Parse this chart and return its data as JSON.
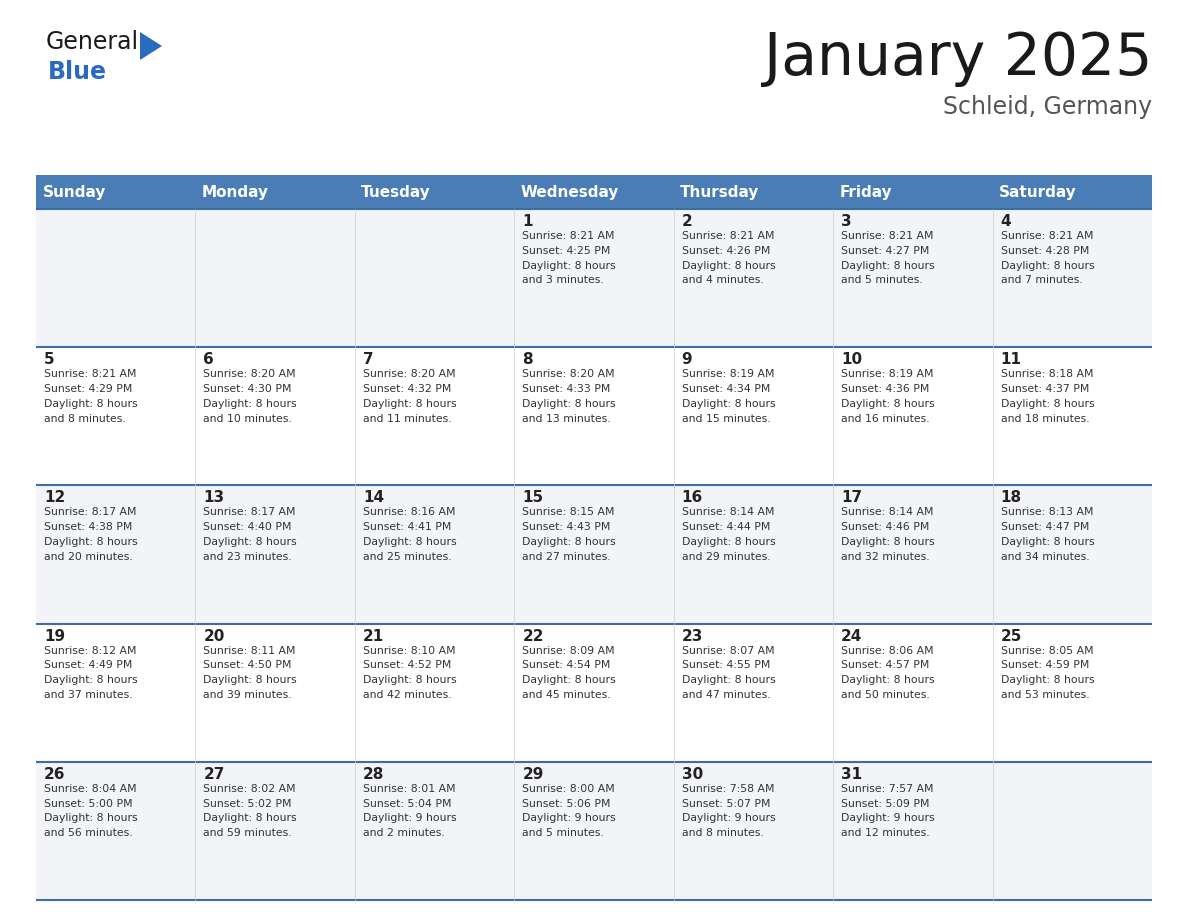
{
  "title": "January 2025",
  "subtitle": "Schleid, Germany",
  "days_of_week": [
    "Sunday",
    "Monday",
    "Tuesday",
    "Wednesday",
    "Thursday",
    "Friday",
    "Saturday"
  ],
  "header_bg": "#4a7cb5",
  "header_text": "#ffffff",
  "row_bg_light": "#f2f4f7",
  "row_bg_white": "#ffffff",
  "day_number_color": "#222222",
  "cell_text_color": "#333333",
  "border_color": "#3a6ea8",
  "title_color": "#1a1a1a",
  "subtitle_color": "#555555",
  "calendar": [
    [
      {
        "day": null,
        "text": ""
      },
      {
        "day": null,
        "text": ""
      },
      {
        "day": null,
        "text": ""
      },
      {
        "day": 1,
        "text": "Sunrise: 8:21 AM\nSunset: 4:25 PM\nDaylight: 8 hours\nand 3 minutes."
      },
      {
        "day": 2,
        "text": "Sunrise: 8:21 AM\nSunset: 4:26 PM\nDaylight: 8 hours\nand 4 minutes."
      },
      {
        "day": 3,
        "text": "Sunrise: 8:21 AM\nSunset: 4:27 PM\nDaylight: 8 hours\nand 5 minutes."
      },
      {
        "day": 4,
        "text": "Sunrise: 8:21 AM\nSunset: 4:28 PM\nDaylight: 8 hours\nand 7 minutes."
      }
    ],
    [
      {
        "day": 5,
        "text": "Sunrise: 8:21 AM\nSunset: 4:29 PM\nDaylight: 8 hours\nand 8 minutes."
      },
      {
        "day": 6,
        "text": "Sunrise: 8:20 AM\nSunset: 4:30 PM\nDaylight: 8 hours\nand 10 minutes."
      },
      {
        "day": 7,
        "text": "Sunrise: 8:20 AM\nSunset: 4:32 PM\nDaylight: 8 hours\nand 11 minutes."
      },
      {
        "day": 8,
        "text": "Sunrise: 8:20 AM\nSunset: 4:33 PM\nDaylight: 8 hours\nand 13 minutes."
      },
      {
        "day": 9,
        "text": "Sunrise: 8:19 AM\nSunset: 4:34 PM\nDaylight: 8 hours\nand 15 minutes."
      },
      {
        "day": 10,
        "text": "Sunrise: 8:19 AM\nSunset: 4:36 PM\nDaylight: 8 hours\nand 16 minutes."
      },
      {
        "day": 11,
        "text": "Sunrise: 8:18 AM\nSunset: 4:37 PM\nDaylight: 8 hours\nand 18 minutes."
      }
    ],
    [
      {
        "day": 12,
        "text": "Sunrise: 8:17 AM\nSunset: 4:38 PM\nDaylight: 8 hours\nand 20 minutes."
      },
      {
        "day": 13,
        "text": "Sunrise: 8:17 AM\nSunset: 4:40 PM\nDaylight: 8 hours\nand 23 minutes."
      },
      {
        "day": 14,
        "text": "Sunrise: 8:16 AM\nSunset: 4:41 PM\nDaylight: 8 hours\nand 25 minutes."
      },
      {
        "day": 15,
        "text": "Sunrise: 8:15 AM\nSunset: 4:43 PM\nDaylight: 8 hours\nand 27 minutes."
      },
      {
        "day": 16,
        "text": "Sunrise: 8:14 AM\nSunset: 4:44 PM\nDaylight: 8 hours\nand 29 minutes."
      },
      {
        "day": 17,
        "text": "Sunrise: 8:14 AM\nSunset: 4:46 PM\nDaylight: 8 hours\nand 32 minutes."
      },
      {
        "day": 18,
        "text": "Sunrise: 8:13 AM\nSunset: 4:47 PM\nDaylight: 8 hours\nand 34 minutes."
      }
    ],
    [
      {
        "day": 19,
        "text": "Sunrise: 8:12 AM\nSunset: 4:49 PM\nDaylight: 8 hours\nand 37 minutes."
      },
      {
        "day": 20,
        "text": "Sunrise: 8:11 AM\nSunset: 4:50 PM\nDaylight: 8 hours\nand 39 minutes."
      },
      {
        "day": 21,
        "text": "Sunrise: 8:10 AM\nSunset: 4:52 PM\nDaylight: 8 hours\nand 42 minutes."
      },
      {
        "day": 22,
        "text": "Sunrise: 8:09 AM\nSunset: 4:54 PM\nDaylight: 8 hours\nand 45 minutes."
      },
      {
        "day": 23,
        "text": "Sunrise: 8:07 AM\nSunset: 4:55 PM\nDaylight: 8 hours\nand 47 minutes."
      },
      {
        "day": 24,
        "text": "Sunrise: 8:06 AM\nSunset: 4:57 PM\nDaylight: 8 hours\nand 50 minutes."
      },
      {
        "day": 25,
        "text": "Sunrise: 8:05 AM\nSunset: 4:59 PM\nDaylight: 8 hours\nand 53 minutes."
      }
    ],
    [
      {
        "day": 26,
        "text": "Sunrise: 8:04 AM\nSunset: 5:00 PM\nDaylight: 8 hours\nand 56 minutes."
      },
      {
        "day": 27,
        "text": "Sunrise: 8:02 AM\nSunset: 5:02 PM\nDaylight: 8 hours\nand 59 minutes."
      },
      {
        "day": 28,
        "text": "Sunrise: 8:01 AM\nSunset: 5:04 PM\nDaylight: 9 hours\nand 2 minutes."
      },
      {
        "day": 29,
        "text": "Sunrise: 8:00 AM\nSunset: 5:06 PM\nDaylight: 9 hours\nand 5 minutes."
      },
      {
        "day": 30,
        "text": "Sunrise: 7:58 AM\nSunset: 5:07 PM\nDaylight: 9 hours\nand 8 minutes."
      },
      {
        "day": 31,
        "text": "Sunrise: 7:57 AM\nSunset: 5:09 PM\nDaylight: 9 hours\nand 12 minutes."
      },
      {
        "day": null,
        "text": ""
      }
    ]
  ],
  "logo_general_color": "#1a1a1a",
  "logo_blue_color": "#2a6abf",
  "logo_triangle_color": "#2a6abf",
  "fig_width": 11.88,
  "fig_height": 9.18,
  "dpi": 100
}
